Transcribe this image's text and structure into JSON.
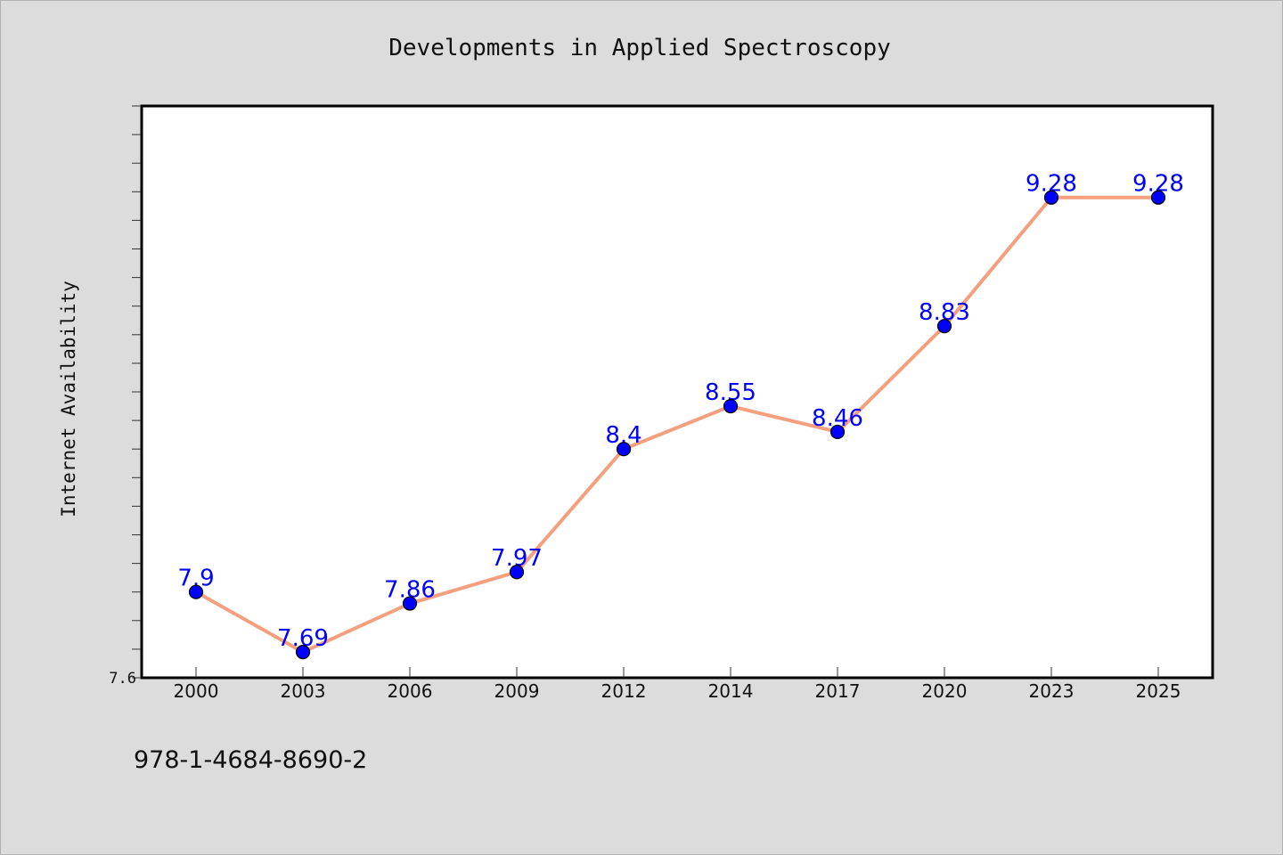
{
  "chart_data": {
    "type": "line",
    "title": "Developments in Applied Spectroscopy",
    "xlabel": "",
    "ylabel": "Internet Availability",
    "categories": [
      "2000",
      "2003",
      "2006",
      "2009",
      "2012",
      "2014",
      "2017",
      "2020",
      "2023",
      "2025"
    ],
    "series": [
      {
        "values": [
          7.9,
          7.69,
          7.86,
          7.97,
          8.4,
          8.55,
          8.46,
          8.83,
          9.28,
          9.28
        ],
        "labels": [
          "7.9",
          "7.69",
          "7.86",
          "7.97",
          "8.4",
          "8.55",
          "8.46",
          "8.83",
          "9.28",
          "9.28"
        ],
        "line_color": "#f4a07e",
        "marker_color": "#0000ff"
      }
    ],
    "ylim": [
      7.6,
      9.6
    ],
    "y_tick_labels": [
      "7.6"
    ],
    "grid": false,
    "legend": "none"
  },
  "footer": {
    "isbn": "978-1-4684-8690-2"
  }
}
